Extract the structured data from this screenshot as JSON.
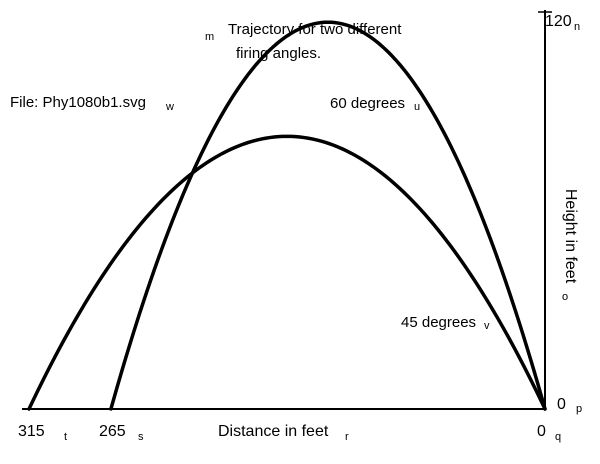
{
  "chart_data": {
    "type": "line",
    "title_lines": [
      "Trajectory for two different",
      "firing angles."
    ],
    "file_label": "File: Phy1080b1.svg",
    "xlabel": "Distance in feet",
    "ylabel": "Height in feet",
    "mirrored": true,
    "xlim": [
      0,
      315
    ],
    "ylim": [
      0,
      120
    ],
    "x_ticks": [
      0,
      265,
      315
    ],
    "y_ticks": [
      0,
      120
    ],
    "series": [
      {
        "name": "45 degrees",
        "points": [
          [
            0,
            0
          ],
          [
            31.5,
            31
          ],
          [
            63,
            55
          ],
          [
            94.5,
            72
          ],
          [
            126,
            81
          ],
          [
            157.5,
            84
          ],
          [
            189,
            81
          ],
          [
            220.5,
            72
          ],
          [
            252,
            55
          ],
          [
            283.5,
            31
          ],
          [
            315,
            0
          ]
        ]
      },
      {
        "name": "60 degrees",
        "points": [
          [
            0,
            0
          ],
          [
            26.5,
            43
          ],
          [
            53,
            77
          ],
          [
            79.5,
            101
          ],
          [
            106,
            116
          ],
          [
            132.5,
            121
          ],
          [
            159,
            116
          ],
          [
            185.5,
            101
          ],
          [
            212,
            77
          ],
          [
            238.5,
            43
          ],
          [
            265,
            0
          ]
        ]
      }
    ],
    "annotations": [
      "m",
      "u",
      "v",
      "w",
      "n",
      "o",
      "p",
      "q",
      "r",
      "s",
      "t"
    ]
  }
}
